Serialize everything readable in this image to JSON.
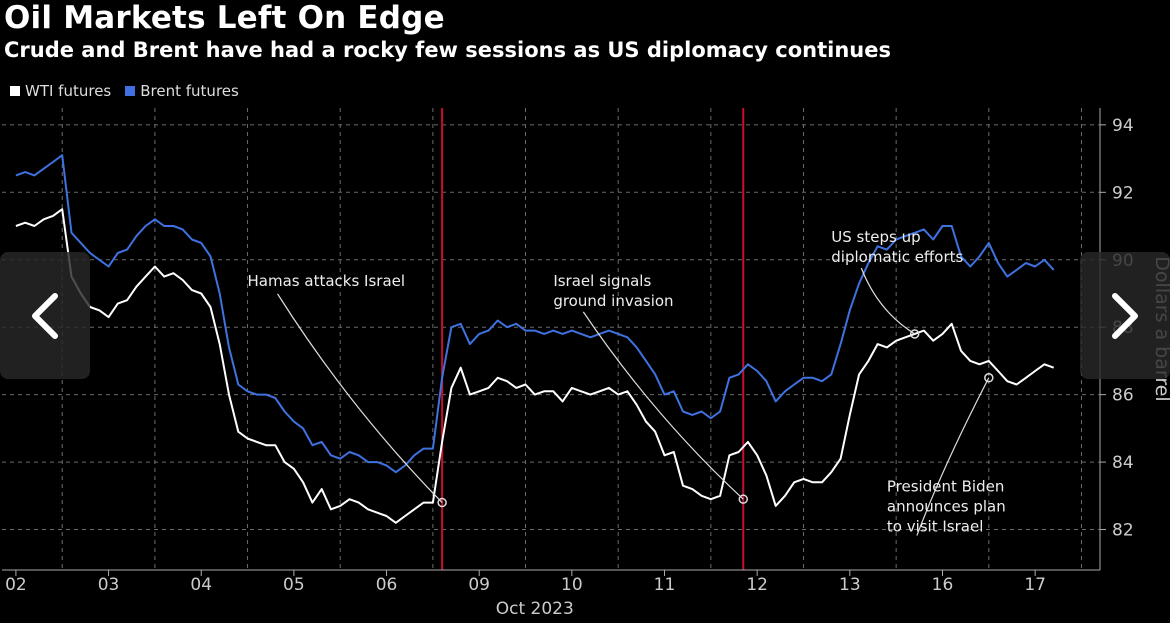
{
  "chart_data": {
    "type": "line",
    "title": "Oil Markets Left On Edge",
    "subtitle": "Crude and Brent have had a rocky few sessions as US diplomacy continues",
    "ylabel": "Dollars a barrel",
    "xlabel": "Oct 2023",
    "ylim": [
      80.8,
      94.5
    ],
    "y_ticks": [
      "94",
      "92",
      "90",
      "88",
      "86",
      "84",
      "82"
    ],
    "categories": [
      "02",
      "03",
      "04",
      "05",
      "06",
      "09",
      "10",
      "11",
      "12",
      "13",
      "16",
      "17"
    ],
    "grid": true,
    "legend_position": "top-left",
    "colors": {
      "wti": "#ffffff",
      "brent": "#3f72e0",
      "event_line": "#c8102e",
      "grid": "#6b6b6b"
    },
    "series": [
      {
        "name": "WTI futures",
        "key": "wti",
        "x": [
          0,
          0.1,
          0.2,
          0.3,
          0.4,
          0.5,
          0.6,
          0.7,
          0.8,
          0.9,
          1.0,
          1.1,
          1.2,
          1.3,
          1.4,
          1.5,
          1.6,
          1.7,
          1.8,
          1.9,
          2.0,
          2.1,
          2.2,
          2.3,
          2.4,
          2.5,
          2.6,
          2.7,
          2.8,
          2.9,
          3.0,
          3.1,
          3.2,
          3.3,
          3.4,
          3.5,
          3.6,
          3.7,
          3.8,
          3.9,
          4.0,
          4.1,
          4.2,
          4.3,
          4.4,
          4.5,
          4.6,
          4.7,
          4.8,
          4.9,
          5.0,
          5.1,
          5.2,
          5.3,
          5.4,
          5.5,
          5.6,
          5.7,
          5.8,
          5.9,
          6.0,
          6.1,
          6.2,
          6.3,
          6.4,
          6.5,
          6.6,
          6.7,
          6.8,
          6.9,
          7.0,
          7.1,
          7.2,
          7.3,
          7.4,
          7.5,
          7.6,
          7.7,
          7.8,
          7.9,
          8.0,
          8.1,
          8.2,
          8.3,
          8.4,
          8.5,
          8.6,
          8.7,
          8.8,
          8.9,
          9.0,
          9.1,
          9.2,
          9.3,
          9.4,
          9.5,
          9.6,
          9.7,
          9.8,
          9.9,
          10.0,
          10.1,
          10.2,
          10.3,
          10.4,
          10.5,
          10.6,
          10.7,
          10.8,
          10.9,
          11.0,
          11.1,
          11.2
        ],
        "values": [
          91.0,
          91.1,
          91.0,
          91.2,
          91.3,
          91.5,
          89.5,
          89.0,
          88.6,
          88.5,
          88.3,
          88.7,
          88.8,
          89.2,
          89.5,
          89.8,
          89.5,
          89.6,
          89.4,
          89.1,
          89.0,
          88.6,
          87.5,
          86.0,
          84.9,
          84.7,
          84.6,
          84.5,
          84.5,
          84.0,
          83.8,
          83.4,
          82.8,
          83.2,
          82.6,
          82.7,
          82.9,
          82.8,
          82.6,
          82.5,
          82.4,
          82.2,
          82.4,
          82.6,
          82.8,
          82.8,
          84.6,
          86.2,
          86.8,
          86.0,
          86.1,
          86.2,
          86.5,
          86.4,
          86.2,
          86.3,
          86.0,
          86.1,
          86.1,
          85.8,
          86.2,
          86.1,
          86.0,
          86.1,
          86.2,
          86.0,
          86.1,
          85.7,
          85.2,
          84.9,
          84.2,
          84.3,
          83.3,
          83.2,
          83.0,
          82.9,
          83.0,
          84.2,
          84.3,
          84.6,
          84.2,
          83.6,
          82.7,
          83.0,
          83.4,
          83.5,
          83.4,
          83.4,
          83.7,
          84.1,
          85.4,
          86.6,
          87.0,
          87.5,
          87.4,
          87.6,
          87.7,
          87.8,
          87.9,
          87.6,
          87.8,
          88.1,
          87.3,
          87.0,
          86.9,
          87.0,
          86.7,
          86.4,
          86.3,
          86.5,
          86.7,
          86.9,
          86.8
        ]
      },
      {
        "name": "Brent futures",
        "key": "brent",
        "x": [
          0,
          0.1,
          0.2,
          0.3,
          0.4,
          0.5,
          0.6,
          0.7,
          0.8,
          0.9,
          1.0,
          1.1,
          1.2,
          1.3,
          1.4,
          1.5,
          1.6,
          1.7,
          1.8,
          1.9,
          2.0,
          2.1,
          2.2,
          2.3,
          2.4,
          2.5,
          2.6,
          2.7,
          2.8,
          2.9,
          3.0,
          3.1,
          3.2,
          3.3,
          3.4,
          3.5,
          3.6,
          3.7,
          3.8,
          3.9,
          4.0,
          4.1,
          4.2,
          4.3,
          4.4,
          4.5,
          4.6,
          4.7,
          4.8,
          4.9,
          5.0,
          5.1,
          5.2,
          5.3,
          5.4,
          5.5,
          5.6,
          5.7,
          5.8,
          5.9,
          6.0,
          6.1,
          6.2,
          6.3,
          6.4,
          6.5,
          6.6,
          6.7,
          6.8,
          6.9,
          7.0,
          7.1,
          7.2,
          7.3,
          7.4,
          7.5,
          7.6,
          7.7,
          7.8,
          7.9,
          8.0,
          8.1,
          8.2,
          8.3,
          8.4,
          8.5,
          8.6,
          8.7,
          8.8,
          8.9,
          9.0,
          9.1,
          9.2,
          9.3,
          9.4,
          9.5,
          9.6,
          9.7,
          9.8,
          9.9,
          10.0,
          10.1,
          10.2,
          10.3,
          10.4,
          10.5,
          10.6,
          10.7,
          10.8,
          10.9,
          11.0,
          11.1,
          11.2
        ],
        "values": [
          92.5,
          92.6,
          92.5,
          92.7,
          92.9,
          93.1,
          90.8,
          90.5,
          90.2,
          90.0,
          89.8,
          90.2,
          90.3,
          90.7,
          91.0,
          91.2,
          91.0,
          91.0,
          90.9,
          90.6,
          90.5,
          90.1,
          89.0,
          87.4,
          86.3,
          86.1,
          86.0,
          86.0,
          85.9,
          85.5,
          85.2,
          85.0,
          84.5,
          84.6,
          84.2,
          84.1,
          84.3,
          84.2,
          84.0,
          84.0,
          83.9,
          83.7,
          83.9,
          84.2,
          84.4,
          84.4,
          86.5,
          88.0,
          88.1,
          87.5,
          87.8,
          87.9,
          88.2,
          88.0,
          88.1,
          87.9,
          87.9,
          87.8,
          87.9,
          87.8,
          87.9,
          87.8,
          87.7,
          87.8,
          87.9,
          87.8,
          87.7,
          87.4,
          87.0,
          86.6,
          86.0,
          86.1,
          85.5,
          85.4,
          85.5,
          85.3,
          85.5,
          86.5,
          86.6,
          86.9,
          86.7,
          86.4,
          85.8,
          86.1,
          86.3,
          86.5,
          86.5,
          86.4,
          86.6,
          87.5,
          88.5,
          89.3,
          89.9,
          90.4,
          90.3,
          90.6,
          90.7,
          90.8,
          90.9,
          90.6,
          91.0,
          91.0,
          90.1,
          89.8,
          90.1,
          90.5,
          89.9,
          89.5,
          89.7,
          89.9,
          89.8,
          90.0,
          89.7
        ]
      }
    ],
    "event_lines_x": [
      4.6,
      7.85
    ],
    "annotations": [
      {
        "lines": [
          "Hamas attacks Israel"
        ],
        "target_x": 4.6,
        "target_y": 82.8,
        "label_x": 2.5,
        "label_y": 89.7
      },
      {
        "lines": [
          "Israel signals",
          "ground invasion"
        ],
        "target_x": 7.85,
        "target_y": 82.9,
        "label_x": 5.8,
        "label_y": 89.7
      },
      {
        "lines": [
          "US steps up",
          "diplomatic efforts"
        ],
        "target_x": 9.7,
        "target_y": 87.8,
        "label_x": 8.8,
        "label_y": 91.0
      },
      {
        "lines": [
          "President Biden",
          "announces plan",
          "to visit Israel"
        ],
        "target_x": 10.5,
        "target_y": 86.5,
        "label_x": 9.4,
        "label_y": 83.6
      }
    ]
  },
  "nav": {
    "prev_icon": "chevron-left-icon",
    "next_icon": "chevron-right-icon"
  }
}
